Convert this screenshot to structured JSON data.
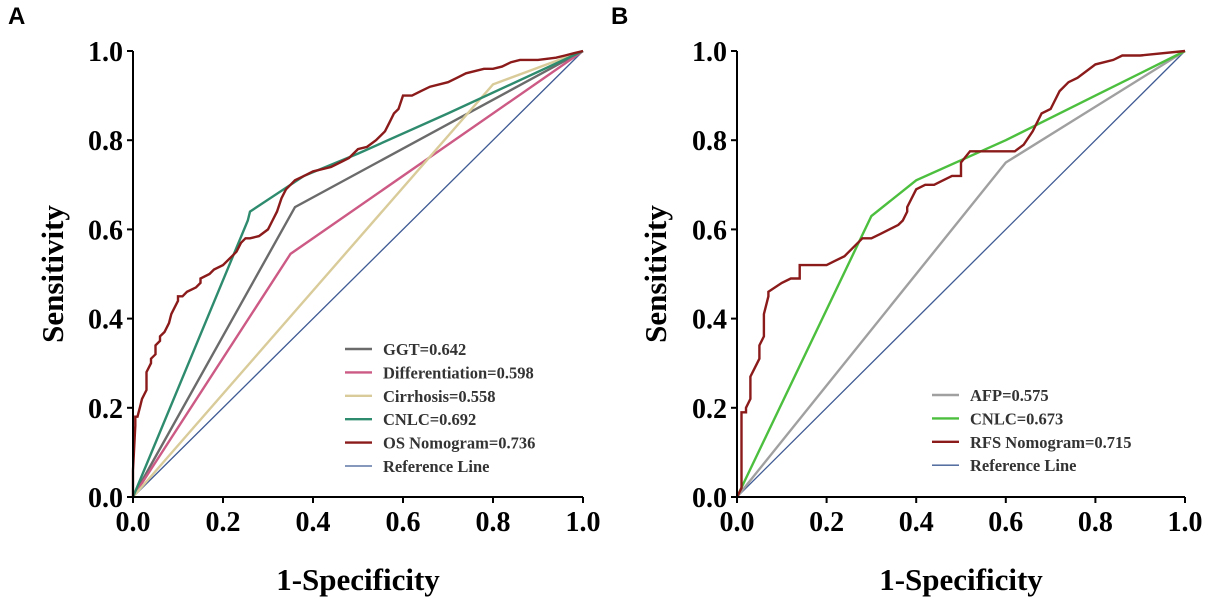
{
  "chart_data": [
    {
      "type": "line",
      "panel": "A",
      "xlabel": "1-Specificity",
      "ylabel": "Sensitivity",
      "xlim": [
        0,
        1
      ],
      "ylim": [
        0,
        1
      ],
      "xticks": [
        "0.0",
        "0.2",
        "0.4",
        "0.6",
        "0.8",
        "1.0"
      ],
      "yticks": [
        "0.0",
        "0.2",
        "0.4",
        "0.6",
        "0.8",
        "1.0"
      ],
      "legend_position": "bottom-right",
      "series": [
        {
          "name": "GGT=0.642",
          "color": "#6b6b6b",
          "step": false,
          "x": [
            0,
            0.36,
            1
          ],
          "y": [
            0,
            0.65,
            1
          ]
        },
        {
          "name": "Differentiation=0.598",
          "color": "#cc5a84",
          "step": false,
          "x": [
            0,
            0.35,
            1
          ],
          "y": [
            0,
            0.545,
            1
          ]
        },
        {
          "name": "Cirrhosis=0.558",
          "color": "#d9cc9a",
          "step": false,
          "x": [
            0,
            0.8,
            1
          ],
          "y": [
            0,
            0.925,
            1
          ]
        },
        {
          "name": "CNLC=0.692",
          "color": "#2e8b6e",
          "step": false,
          "x": [
            0,
            0.255,
            0.26,
            0.38,
            0.5,
            0.7,
            1
          ],
          "y": [
            0,
            0.62,
            0.64,
            0.72,
            0.77,
            0.86,
            1
          ]
        },
        {
          "name": "OS Nomogram=0.736",
          "color": "#8b1a1a",
          "step": false,
          "x": [
            0,
            0,
            0.005,
            0.005,
            0.01,
            0.015,
            0.02,
            0.03,
            0.03,
            0.04,
            0.04,
            0.05,
            0.05,
            0.06,
            0.06,
            0.07,
            0.08,
            0.085,
            0.09,
            0.1,
            0.1,
            0.11,
            0.12,
            0.14,
            0.15,
            0.15,
            0.17,
            0.18,
            0.2,
            0.22,
            0.23,
            0.24,
            0.25,
            0.26,
            0.28,
            0.3,
            0.31,
            0.32,
            0.33,
            0.34,
            0.35,
            0.36,
            0.38,
            0.4,
            0.42,
            0.44,
            0.46,
            0.48,
            0.5,
            0.52,
            0.54,
            0.56,
            0.57,
            0.58,
            0.59,
            0.6,
            0.62,
            0.64,
            0.66,
            0.7,
            0.72,
            0.74,
            0.76,
            0.78,
            0.8,
            0.82,
            0.84,
            0.86,
            0.9,
            0.94,
            0.96,
            0.98,
            1
          ],
          "y": [
            0,
            0.06,
            0.16,
            0.18,
            0.18,
            0.2,
            0.22,
            0.24,
            0.28,
            0.3,
            0.31,
            0.32,
            0.34,
            0.35,
            0.36,
            0.37,
            0.39,
            0.41,
            0.42,
            0.44,
            0.45,
            0.45,
            0.46,
            0.47,
            0.48,
            0.49,
            0.5,
            0.51,
            0.52,
            0.54,
            0.55,
            0.57,
            0.58,
            0.58,
            0.585,
            0.6,
            0.62,
            0.64,
            0.67,
            0.69,
            0.7,
            0.71,
            0.72,
            0.73,
            0.735,
            0.74,
            0.75,
            0.76,
            0.78,
            0.785,
            0.8,
            0.82,
            0.84,
            0.86,
            0.87,
            0.9,
            0.9,
            0.91,
            0.92,
            0.93,
            0.94,
            0.95,
            0.955,
            0.96,
            0.96,
            0.965,
            0.975,
            0.98,
            0.98,
            0.985,
            0.99,
            0.995,
            1
          ]
        },
        {
          "name": "Reference Line",
          "color": "#3f5b94",
          "step": false,
          "x": [
            0,
            1
          ],
          "y": [
            0,
            1
          ]
        }
      ]
    },
    {
      "type": "line",
      "panel": "B",
      "xlabel": "1-Specificity",
      "ylabel": "Sensitivity",
      "xlim": [
        0,
        1
      ],
      "ylim": [
        0,
        1
      ],
      "xticks": [
        "0.0",
        "0.2",
        "0.4",
        "0.6",
        "0.8",
        "1.0"
      ],
      "yticks": [
        "0.0",
        "0.2",
        "0.4",
        "0.6",
        "0.8",
        "1.0"
      ],
      "legend_position": "bottom-right",
      "series": [
        {
          "name": "AFP=0.575",
          "color": "#a0a0a0",
          "step": false,
          "x": [
            0,
            0.6,
            1
          ],
          "y": [
            0,
            0.75,
            1
          ]
        },
        {
          "name": "CNLC=0.673",
          "color": "#4cbf3f",
          "step": false,
          "x": [
            0,
            0.3,
            0.4,
            0.6,
            0.8,
            1
          ],
          "y": [
            0,
            0.63,
            0.71,
            0.8,
            0.9,
            1
          ]
        },
        {
          "name": "RFS Nomogram=0.715",
          "color": "#8b1a1a",
          "step": false,
          "x": [
            0,
            0.01,
            0.01,
            0.02,
            0.02,
            0.03,
            0.03,
            0.04,
            0.05,
            0.05,
            0.06,
            0.06,
            0.07,
            0.07,
            0.1,
            0.12,
            0.14,
            0.14,
            0.2,
            0.22,
            0.24,
            0.26,
            0.28,
            0.28,
            0.3,
            0.32,
            0.34,
            0.36,
            0.37,
            0.38,
            0.38,
            0.4,
            0.42,
            0.44,
            0.46,
            0.48,
            0.5,
            0.5,
            0.52,
            0.54,
            0.56,
            0.6,
            0.62,
            0.64,
            0.66,
            0.68,
            0.7,
            0.72,
            0.74,
            0.76,
            0.8,
            0.84,
            0.86,
            0.9,
            1
          ],
          "y": [
            0,
            0.02,
            0.19,
            0.19,
            0.2,
            0.22,
            0.27,
            0.29,
            0.31,
            0.34,
            0.36,
            0.41,
            0.45,
            0.46,
            0.48,
            0.49,
            0.49,
            0.52,
            0.52,
            0.53,
            0.54,
            0.56,
            0.58,
            0.58,
            0.58,
            0.59,
            0.6,
            0.61,
            0.62,
            0.64,
            0.65,
            0.69,
            0.7,
            0.7,
            0.71,
            0.72,
            0.72,
            0.75,
            0.775,
            0.775,
            0.775,
            0.775,
            0.775,
            0.79,
            0.82,
            0.86,
            0.87,
            0.91,
            0.93,
            0.94,
            0.97,
            0.98,
            0.99,
            0.99,
            1
          ]
        },
        {
          "name": "Reference Line",
          "color": "#3f5b94",
          "step": false,
          "x": [
            0,
            1
          ],
          "y": [
            0,
            1
          ]
        }
      ]
    }
  ]
}
